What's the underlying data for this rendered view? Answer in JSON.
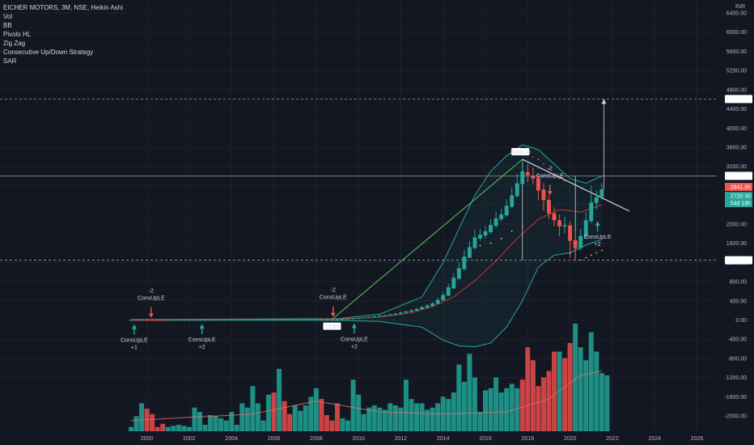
{
  "legend": {
    "symbol_line": "EICHER MOTORS, 3M, NSE, Heikin Ashi",
    "indicators": [
      "Vol",
      "BB",
      "Pivots HL",
      "Zig Zag",
      "Consecutive Up/Down Strategy",
      "SAR"
    ]
  },
  "colors": {
    "background": "#131722",
    "grid": "#1e222d",
    "up": "#26a69a",
    "down": "#ef5350",
    "volume_up": "#1f9c8f",
    "volume_down": "#e04848",
    "band": "#26a69a",
    "zigzag": "#4caf50",
    "text": "#b2b5be"
  },
  "chart_data": {
    "type": "candlestick",
    "currency_label": "INR",
    "price_axis_ticks": [
      "6400.00",
      "6000.00",
      "5600.00",
      "5200.00",
      "4800.00",
      "4400.00",
      "4000.00",
      "3600.00",
      "3200.00",
      "2800.00",
      "2400.00",
      "2000.00",
      "1600.00",
      "1200.00",
      "800.00",
      "400.00",
      "0.00",
      "-400.00",
      "-800.00",
      "-1200.00",
      "-1600.00",
      "-2000.00"
    ],
    "price_axis_tick_values": [
      6400,
      6000,
      5600,
      5200,
      4800,
      4400,
      4000,
      3600,
      3200,
      2800,
      2400,
      2000,
      1600,
      1200,
      800,
      400,
      0,
      -400,
      -800,
      -1200,
      -1600,
      -2000
    ],
    "time_axis_ticks": [
      "2000",
      "2002",
      "2004",
      "2006",
      "2008",
      "2010",
      "2012",
      "2014",
      "2016",
      "2018",
      "2020",
      "2022",
      "2024",
      "2026"
    ],
    "time_axis_tick_values": [
      2000,
      2002,
      2004,
      2006,
      2008,
      2010,
      2012,
      2014,
      2016,
      2018,
      2020,
      2022,
      2024,
      2026
    ],
    "price_labels": {
      "target": "4605.70",
      "resistance": "3003.30",
      "last_red": "2841.95",
      "last": "2720.30",
      "countdown": "54d 19h",
      "support": "1246.45"
    },
    "horizontal_levels": [
      4605.7,
      3003.3,
      1246.45
    ],
    "price_markers": {
      "pivot_high": "3348.00",
      "pivot_low": "13.80"
    },
    "annotations": [
      {
        "text_top": "-2",
        "text_bottom": "ConsUpLE",
        "direction": "down",
        "x": 2000.2,
        "y": -2
      },
      {
        "text_top": "ConsUpLE",
        "text_bottom": "+1",
        "direction": "up",
        "x": 1999.4,
        "y": -2
      },
      {
        "text_top": "ConsUpLE",
        "text_bottom": "+2",
        "direction": "up",
        "x": 2002.6,
        "y": 5
      },
      {
        "text_top": "-2",
        "text_bottom": "ConsUpLE",
        "direction": "down",
        "x": 2008.8,
        "y": 15
      },
      {
        "text_top": "ConsUpLE",
        "text_bottom": "+2",
        "direction": "up",
        "x": 2009.8,
        "y": 20
      },
      {
        "text_top": "-2",
        "text_bottom": "ConsUpLE",
        "direction": "down",
        "x": 2019.05,
        "y": 2550
      },
      {
        "text_top": "ConsUpLE",
        "text_bottom": "+2",
        "direction": "up",
        "x": 2021.3,
        "y": 2150
      }
    ],
    "candles": [
      [
        1999.25,
        1.5,
        2.5,
        1.0,
        2.8
      ],
      [
        1999.5,
        2.0,
        1.8,
        1.2,
        2.5
      ],
      [
        1999.75,
        1.8,
        2.2,
        1.5,
        2.6
      ],
      [
        2000.0,
        2.0,
        1.6,
        1.2,
        2.4
      ],
      [
        2000.25,
        1.7,
        1.3,
        1.0,
        2.0
      ],
      [
        2000.5,
        1.5,
        1.2,
        0.9,
        1.8
      ],
      [
        2000.75,
        1.3,
        1.1,
        0.8,
        1.6
      ],
      [
        2001.0,
        1.2,
        1.4,
        1.0,
        1.7
      ],
      [
        2001.25,
        1.3,
        1.6,
        1.1,
        1.9
      ],
      [
        2001.5,
        1.5,
        1.7,
        1.3,
        2.0
      ],
      [
        2001.75,
        1.6,
        1.9,
        1.4,
        2.2
      ],
      [
        2002.0,
        1.8,
        2.1,
        1.6,
        2.5
      ],
      [
        2002.25,
        2.0,
        2.4,
        1.8,
        2.8
      ],
      [
        2002.5,
        2.3,
        2.8,
        2.1,
        3.2
      ],
      [
        2002.75,
        2.6,
        3.2,
        2.4,
        3.6
      ],
      [
        2003.0,
        3.0,
        3.5,
        2.8,
        4.0
      ],
      [
        2003.25,
        3.3,
        4.2,
        3.1,
        4.8
      ],
      [
        2003.5,
        4.0,
        5.5,
        3.8,
        6.0
      ],
      [
        2003.75,
        5.2,
        6.5,
        5.0,
        7.2
      ],
      [
        2004.0,
        6.2,
        7.5,
        5.8,
        8.5
      ],
      [
        2004.25,
        7.2,
        8.0,
        6.8,
        9.0
      ],
      [
        2004.5,
        7.8,
        8.8,
        7.2,
        9.5
      ],
      [
        2004.75,
        8.5,
        10.0,
        8.0,
        11.0
      ],
      [
        2005.0,
        9.8,
        11.5,
        9.2,
        12.5
      ],
      [
        2005.25,
        11.0,
        12.8,
        10.5,
        14.0
      ],
      [
        2005.5,
        12.5,
        14.5,
        12.0,
        16.0
      ],
      [
        2005.75,
        14.0,
        16.0,
        13.5,
        18.0
      ],
      [
        2006.0,
        15.5,
        18.0,
        15.0,
        20.0
      ],
      [
        2006.25,
        17.5,
        19.5,
        16.0,
        21.0
      ],
      [
        2006.5,
        19.0,
        18.0,
        16.5,
        21.5
      ],
      [
        2006.75,
        18.2,
        19.5,
        17.5,
        21.0
      ],
      [
        2007.0,
        19.0,
        20.5,
        18.0,
        22.5
      ],
      [
        2007.25,
        20.0,
        21.5,
        19.0,
        23.5
      ],
      [
        2007.5,
        21.0,
        22.0,
        20.0,
        24.0
      ],
      [
        2007.75,
        21.5,
        23.0,
        20.5,
        25.0
      ],
      [
        2008.0,
        22.5,
        21.0,
        19.0,
        24.0
      ],
      [
        2008.25,
        21.5,
        19.0,
        17.0,
        22.5
      ],
      [
        2008.5,
        19.5,
        17.0,
        15.5,
        20.5
      ],
      [
        2008.75,
        17.5,
        14.5,
        13.8,
        18.5
      ],
      [
        2009.0,
        15.0,
        16.5,
        14.0,
        18.0
      ],
      [
        2009.25,
        16.0,
        20.0,
        15.5,
        22.0
      ],
      [
        2009.5,
        19.0,
        25.0,
        18.5,
        28.0
      ],
      [
        2009.75,
        24.0,
        32.0,
        23.0,
        36.0
      ],
      [
        2010.0,
        30.0,
        40.0,
        28.0,
        46.0
      ],
      [
        2010.25,
        38.0,
        50.0,
        36.0,
        56.0
      ],
      [
        2010.5,
        48.0,
        62.0,
        46.0,
        70.0
      ],
      [
        2010.75,
        60.0,
        75.0,
        58.0,
        84.0
      ],
      [
        2011.0,
        72.0,
        88.0,
        70.0,
        98.0
      ],
      [
        2011.25,
        85.0,
        100.0,
        82.0,
        110.0
      ],
      [
        2011.5,
        96.0,
        115.0,
        92.0,
        125.0
      ],
      [
        2011.75,
        110.0,
        132.0,
        106.0,
        144.0
      ],
      [
        2012.0,
        128.0,
        155.0,
        124.0,
        170.0
      ],
      [
        2012.25,
        150.0,
        178.0,
        146.0,
        192.0
      ],
      [
        2012.5,
        172.0,
        200.0,
        168.0,
        220.0
      ],
      [
        2012.75,
        195.0,
        230.0,
        190.0,
        250.0
      ],
      [
        2013.0,
        225.0,
        265.0,
        220.0,
        290.0
      ],
      [
        2013.25,
        258.0,
        300.0,
        252.0,
        330.0
      ],
      [
        2013.5,
        292.0,
        345.0,
        285.0,
        380.0
      ],
      [
        2013.75,
        338.0,
        420.0,
        330.0,
        460.0
      ],
      [
        2014.0,
        410.0,
        520.0,
        400.0,
        580.0
      ],
      [
        2014.25,
        510.0,
        680.0,
        500.0,
        760.0
      ],
      [
        2014.5,
        660.0,
        880.0,
        640.0,
        980.0
      ],
      [
        2014.75,
        860.0,
        1080.0,
        840.0,
        1200.0
      ],
      [
        2015.0,
        1060.0,
        1320.0,
        1040.0,
        1460.0
      ],
      [
        2015.25,
        1300.0,
        1520.0,
        1280.0,
        1650.0
      ],
      [
        2015.5,
        1500.0,
        1720.0,
        1480.0,
        1880.0
      ],
      [
        2015.75,
        1700.0,
        1780.0,
        1650.0,
        1900.0
      ],
      [
        2016.0,
        1760.0,
        1850.0,
        1700.0,
        1960.0
      ],
      [
        2016.25,
        1830.0,
        1980.0,
        1790.0,
        2100.0
      ],
      [
        2016.5,
        1960.0,
        2120.0,
        1920.0,
        2250.0
      ],
      [
        2016.75,
        2100.0,
        2200.0,
        2060.0,
        2320.0
      ],
      [
        2017.0,
        2180.0,
        2380.0,
        2150.0,
        2520.0
      ],
      [
        2017.25,
        2360.0,
        2600.0,
        2330.0,
        2760.0
      ],
      [
        2017.5,
        2580.0,
        2850.0,
        2550.0,
        3050.0
      ],
      [
        2017.75,
        2830.0,
        3100.0,
        2800.0,
        3348.0
      ],
      [
        2018.0,
        3080.0,
        3020.0,
        2880.0,
        3250.0
      ],
      [
        2018.25,
        3000.0,
        2950.0,
        2820.0,
        3180.0
      ],
      [
        2018.5,
        2960.0,
        2700.0,
        2500.0,
        3050.0
      ],
      [
        2018.75,
        2720.0,
        2500.0,
        2280.0,
        2850.0
      ],
      [
        2019.0,
        2500.0,
        2220.0,
        2100.0,
        2600.0
      ],
      [
        2019.25,
        2220.0,
        2080.0,
        1950.0,
        2350.0
      ],
      [
        2019.5,
        2080.0,
        1950.0,
        1750.0,
        2200.0
      ],
      [
        2019.75,
        1950.0,
        1980.0,
        1800.0,
        2150.0
      ],
      [
        2020.0,
        1970.0,
        1650.0,
        1300.0,
        2050.0
      ],
      [
        2020.25,
        1660.0,
        1500.0,
        1246.0,
        1850.0
      ],
      [
        2020.5,
        1500.0,
        1750.0,
        1450.0,
        1900.0
      ],
      [
        2020.75,
        1740.0,
        2080.0,
        1700.0,
        2250.0
      ],
      [
        2021.0,
        2060.0,
        2450.0,
        2020.0,
        2800.0
      ],
      [
        2021.25,
        2440.0,
        2560.0,
        2300.0,
        2700.0
      ],
      [
        2021.5,
        2560.0,
        2720.3,
        2500.0,
        2850.0
      ]
    ],
    "bb_upper": [
      [
        2013.0,
        480
      ],
      [
        2014.0,
        1200
      ],
      [
        2014.75,
        1900
      ],
      [
        2015.5,
        2600
      ],
      [
        2016.25,
        3100
      ],
      [
        2017.0,
        3420
      ],
      [
        2017.75,
        3650
      ],
      [
        2018.5,
        3550
      ],
      [
        2019.25,
        3250
      ],
      [
        2020.0,
        2950
      ],
      [
        2020.75,
        2850
      ],
      [
        2021.5,
        3000
      ]
    ],
    "bb_lower": [
      [
        2013.0,
        -150
      ],
      [
        2014.0,
        -420
      ],
      [
        2014.75,
        -540
      ],
      [
        2015.5,
        -560
      ],
      [
        2016.25,
        -480
      ],
      [
        2017.0,
        -150
      ],
      [
        2017.75,
        400
      ],
      [
        2018.5,
        1100
      ],
      [
        2019.25,
        1350
      ],
      [
        2020.0,
        1400
      ],
      [
        2020.75,
        1560
      ],
      [
        2021.5,
        1680
      ]
    ],
    "bb_upper_early": [
      [
        1999.25,
        10
      ],
      [
        2005,
        22
      ],
      [
        2009,
        28
      ],
      [
        2011,
        120
      ],
      [
        2013.0,
        480
      ]
    ],
    "bb_lower_early": [
      [
        1999.25,
        -5
      ],
      [
        2005,
        -4
      ],
      [
        2009,
        -8
      ],
      [
        2011,
        -30
      ],
      [
        2013.0,
        -150
      ]
    ],
    "bb_basis": [
      [
        1999.25,
        2
      ],
      [
        2005,
        12
      ],
      [
        2009,
        18
      ],
      [
        2011,
        60
      ],
      [
        2012.5,
        150
      ],
      [
        2013.5,
        280
      ],
      [
        2014.5,
        480
      ],
      [
        2015.5,
        820
      ],
      [
        2016.5,
        1230
      ],
      [
        2017.5,
        1700
      ],
      [
        2018.5,
        2100
      ],
      [
        2019.5,
        2300
      ],
      [
        2020.5,
        2250
      ],
      [
        2021.5,
        2400
      ]
    ],
    "zigzag": [
      [
        2008.75,
        13.8
      ],
      [
        2017.75,
        3348.0
      ]
    ],
    "pivot_lines": [
      {
        "x": 2017.75,
        "from": 3348,
        "to": 1246.45
      },
      {
        "x": 2020.25,
        "from": 3003.3,
        "to": 1246.45
      },
      {
        "x": 2021.6,
        "from": 2720,
        "to": 4605.7,
        "arrow": true
      }
    ],
    "trendline": [
      [
        2017.75,
        3348
      ],
      [
        2022.8,
        2270
      ]
    ],
    "sar_dots": [
      [
        2015.75,
        1550
      ],
      [
        2016.25,
        1600
      ],
      [
        2016.75,
        1700
      ],
      [
        2017.25,
        1850
      ],
      [
        2017.75,
        1950
      ],
      [
        2018.25,
        3400
      ],
      [
        2018.5,
        3350
      ],
      [
        2018.75,
        3250
      ],
      [
        2019.0,
        3150
      ],
      [
        2019.25,
        3050
      ],
      [
        2019.5,
        2950
      ],
      [
        2019.75,
        2900
      ],
      [
        2020.0,
        1400
      ],
      [
        2020.5,
        1250
      ],
      [
        2020.75,
        1300
      ],
      [
        2021.0,
        1350
      ],
      [
        2021.25,
        1400
      ],
      [
        2021.5,
        1450
      ]
    ],
    "volume": {
      "values": [
        4,
        14,
        26,
        21,
        16,
        4,
        7,
        4,
        5,
        6,
        5,
        4,
        22,
        18,
        6,
        15,
        14,
        12,
        10,
        18,
        6,
        26,
        22,
        42,
        26,
        10,
        34,
        36,
        58,
        28,
        16,
        24,
        19,
        24,
        32,
        40,
        30,
        15,
        10,
        26,
        12,
        10,
        48,
        34,
        16,
        22,
        24,
        22,
        20,
        26,
        24,
        22,
        48,
        30,
        26,
        26,
        20,
        22,
        26,
        32,
        30,
        36,
        62,
        46,
        72,
        50,
        18,
        38,
        40,
        50,
        36,
        40,
        44,
        40,
        48,
        78,
        66,
        42,
        50,
        56,
        74,
        74,
        68,
        82,
        100,
        78,
        66,
        92,
        74,
        54,
        52
      ],
      "up": [
        1,
        1,
        1,
        0,
        0,
        0,
        0,
        1,
        1,
        1,
        1,
        1,
        1,
        1,
        1,
        1,
        1,
        1,
        1,
        1,
        1,
        1,
        1,
        1,
        1,
        1,
        1,
        0,
        1,
        0,
        0,
        1,
        1,
        1,
        1,
        1,
        0,
        0,
        0,
        0,
        1,
        1,
        1,
        1,
        1,
        1,
        1,
        1,
        1,
        1,
        1,
        1,
        1,
        1,
        1,
        1,
        1,
        1,
        1,
        1,
        1,
        1,
        1,
        1,
        1,
        1,
        1,
        1,
        1,
        1,
        1,
        1,
        1,
        1,
        0,
        0,
        0,
        0,
        0,
        0,
        0,
        1,
        0,
        0,
        1,
        1,
        1,
        1,
        1,
        1,
        1
      ],
      "ma": [
        [
          1999.25,
          0.1
        ],
        [
          2005,
          0.16
        ],
        [
          2008,
          0.28
        ],
        [
          2011,
          0.18
        ],
        [
          2014,
          0.16
        ],
        [
          2017,
          0.18
        ],
        [
          2019,
          0.3
        ],
        [
          2020.5,
          0.52
        ],
        [
          2021.5,
          0.56
        ]
      ]
    }
  }
}
